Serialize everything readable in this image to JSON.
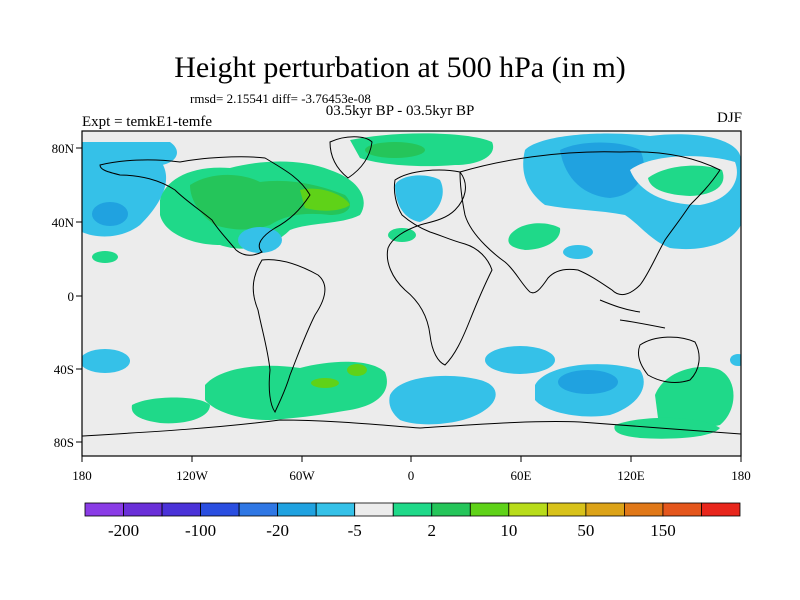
{
  "title": "Height perturbation at 500 hPa (in m)",
  "stats": "rmsd= 2.15541  diff= -3.76453e-08",
  "period": "03.5kyr BP - 03.5kyr BP",
  "experiment": "Expt = temkE1-temfe",
  "season": "DJF",
  "lat_labels": [
    "80N",
    "40N",
    "0",
    "40S",
    "80S"
  ],
  "lon_labels": [
    "180",
    "120W",
    "60W",
    "0",
    "60E",
    "120E",
    "180"
  ],
  "colorbar": {
    "colors": [
      "#8a3ce6",
      "#6a2fd8",
      "#4a32d8",
      "#2a4ee0",
      "#2f77e4",
      "#20a2e0",
      "#35c1e8",
      "#ececec",
      "#1fd989",
      "#25c55a",
      "#5fd218",
      "#b8dc1a",
      "#d8c21a",
      "#dca318",
      "#e07818",
      "#e4561c",
      "#e8261c"
    ],
    "labels": [
      "-200",
      "-100",
      "-20",
      "-5",
      "2",
      "10",
      "50",
      "150"
    ],
    "label_after_box": [
      1,
      3,
      5,
      7,
      9,
      11,
      13,
      15
    ]
  }
}
